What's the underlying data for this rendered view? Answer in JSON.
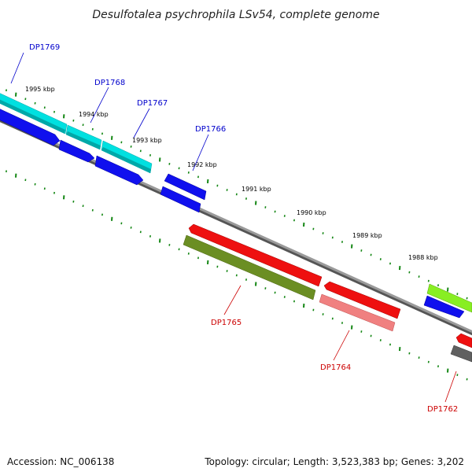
{
  "title": "Desulfotalea psychrophila LSv54, complete genome",
  "footer": {
    "accession": "Accession: NC_006138",
    "summary": "Topology: circular; Length: 3,523,383 bp; Genes: 3,202"
  },
  "colors": {
    "backbone": "#808080",
    "tick": "#138613",
    "label_forward": "#0000cc",
    "label_reverse": "#cc0000"
  },
  "ticks": [
    {
      "label": "1995 kbp"
    },
    {
      "label": "1994 kbp"
    },
    {
      "label": "1993 kbp"
    },
    {
      "label": "1992 kbp"
    },
    {
      "label": "1991 kbp"
    },
    {
      "label": "1990 kbp"
    },
    {
      "label": "1989 kbp"
    },
    {
      "label": "1988 kbp"
    }
  ],
  "gene_labels": [
    {
      "id": "dp1769",
      "text": "DP1769",
      "strand": "forward"
    },
    {
      "id": "dp1768",
      "text": "DP1768",
      "strand": "forward"
    },
    {
      "id": "dp1767",
      "text": "DP1767",
      "strand": "forward"
    },
    {
      "id": "dp1766",
      "text": "DP1766",
      "strand": "forward"
    },
    {
      "id": "dp1765",
      "text": "DP1765",
      "strand": "reverse"
    },
    {
      "id": "dp1764",
      "text": "DP1764",
      "strand": "reverse"
    },
    {
      "id": "dp1762",
      "text": "DP1762",
      "strand": "reverse"
    }
  ]
}
